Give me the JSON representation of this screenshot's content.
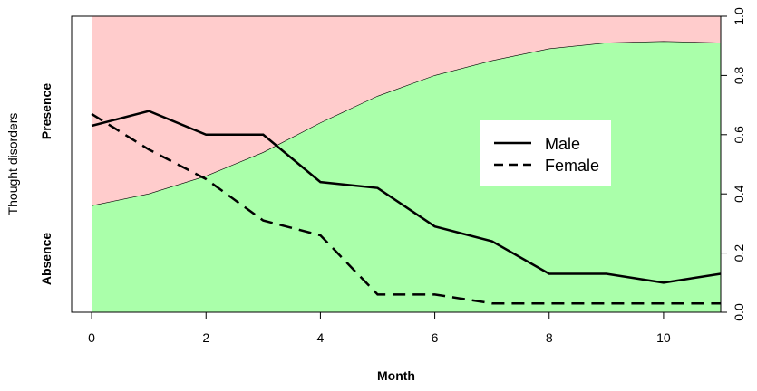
{
  "chart_data": {
    "type": "line",
    "title": "",
    "xlabel": "Month",
    "ylabel": "Thought disorders",
    "y_left_labels": [
      "Absence",
      "Presence"
    ],
    "x_ticks": [
      0,
      2,
      4,
      6,
      8,
      10
    ],
    "x_tick_labels": [
      "0",
      "2",
      "4",
      "6",
      "8",
      "10"
    ],
    "right_ticks": [
      0.0,
      0.2,
      0.4,
      0.6,
      0.8,
      1.0
    ],
    "right_tick_labels": [
      "0.0",
      "0.2",
      "0.4",
      "0.6",
      "0.8",
      "1.0"
    ],
    "xlim": [
      -0.35,
      11.0
    ],
    "ylim_right": [
      0,
      1
    ],
    "x": [
      0,
      1,
      2,
      3,
      4,
      5,
      6,
      7,
      8,
      9,
      10,
      11
    ],
    "series": [
      {
        "name": "Male",
        "line_style": "solid",
        "values": [
          0.63,
          0.68,
          0.6,
          0.6,
          0.44,
          0.42,
          0.29,
          0.24,
          0.13,
          0.13,
          0.1,
          0.13
        ]
      },
      {
        "name": "Female",
        "line_style": "dashed",
        "values": [
          0.67,
          0.55,
          0.45,
          0.31,
          0.26,
          0.06,
          0.06,
          0.03,
          0.03,
          0.03,
          0.03,
          0.03
        ]
      }
    ],
    "band": {
      "x": [
        0,
        1,
        2,
        3,
        4,
        5,
        6,
        7,
        8,
        9,
        10,
        11
      ],
      "boundary": [
        0.36,
        0.4,
        0.46,
        0.54,
        0.64,
        0.73,
        0.8,
        0.85,
        0.89,
        0.91,
        0.915,
        0.91
      ],
      "lower_color": "#aaffaa",
      "upper_color": "#ffcccc"
    },
    "legend": {
      "position": "center-right",
      "entries": [
        "Male",
        "Female"
      ]
    },
    "grid": false
  }
}
